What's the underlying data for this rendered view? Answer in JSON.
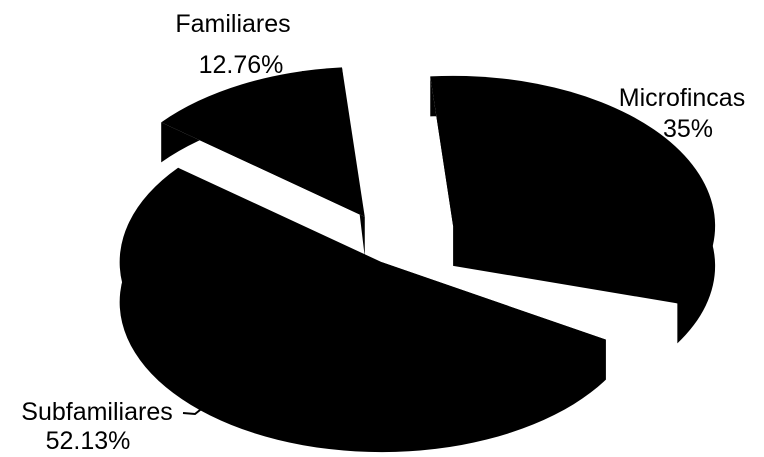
{
  "chart_data": {
    "type": "pie",
    "title": "",
    "legend": "none",
    "categories": [
      "Microfincas",
      "Subfamiliares",
      "Familiares"
    ],
    "values": [
      35,
      52.13,
      12.76
    ],
    "data_labels": [
      "35%",
      "52.13%",
      "12.76%"
    ],
    "style": "3d-exploded",
    "colors": {
      "slice_fill": "#000000",
      "background": "#ffffff",
      "text": "#000000"
    }
  }
}
